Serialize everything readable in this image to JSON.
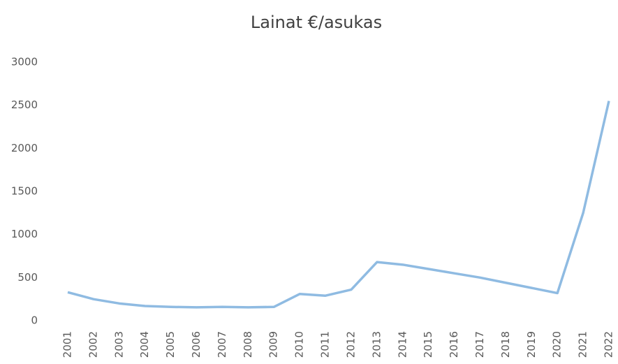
{
  "chart_data": {
    "type": "line",
    "title": "Lainat €/asukas",
    "categories": [
      "2001",
      "2002",
      "2003",
      "2004",
      "2005",
      "2006",
      "2007",
      "2008",
      "2009",
      "2010",
      "2011",
      "2012",
      "2013",
      "2014",
      "2015",
      "2016",
      "2017",
      "2018",
      "2019",
      "2020",
      "2021",
      "2022"
    ],
    "series": [
      {
        "name": "Lainat €/asukas",
        "color": "#8fbbe2",
        "values": [
          330,
          250,
          200,
          170,
          160,
          155,
          160,
          155,
          160,
          310,
          290,
          360,
          680,
          650,
          600,
          550,
          500,
          440,
          380,
          320,
          1250,
          2550
        ]
      }
    ],
    "ylim": [
      0,
      3000
    ],
    "yticks": [
      0,
      500,
      1000,
      1500,
      2000,
      2500,
      3000
    ],
    "grid": false
  }
}
